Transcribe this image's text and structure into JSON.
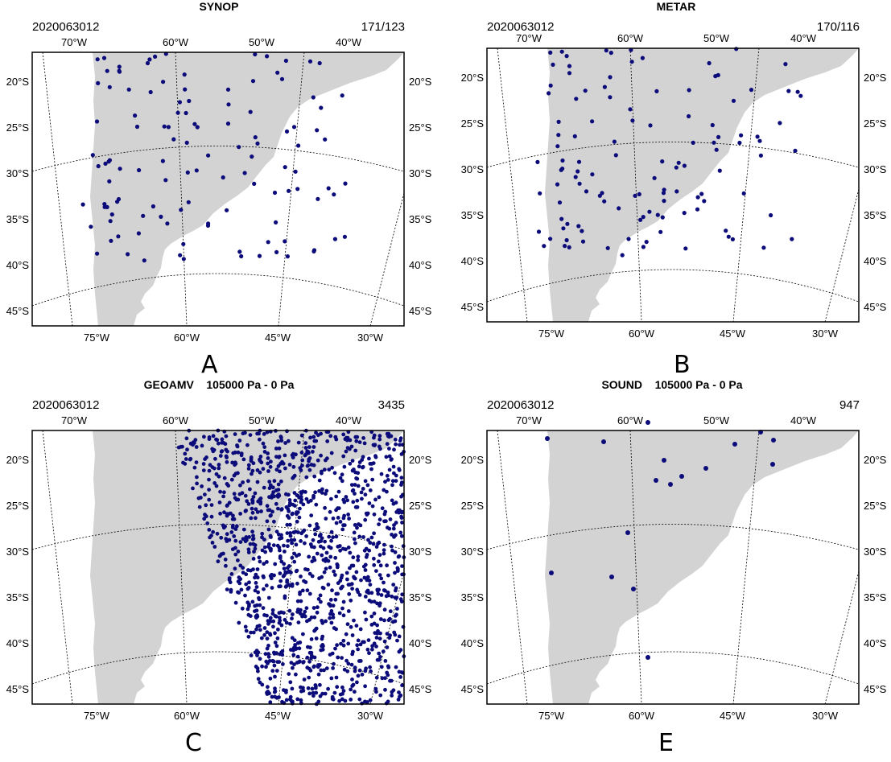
{
  "colors": {
    "land": "#d3d3d3",
    "obs": "#0b0b7a",
    "frame": "#000000"
  },
  "panels": [
    {
      "id": "A",
      "title": "SYNOP",
      "date": "2020063012",
      "count": "171/123",
      "letter": "A"
    },
    {
      "id": "B",
      "title": "METAR",
      "date": "2020063012",
      "count": "170/116",
      "letter": "B"
    },
    {
      "id": "C",
      "title": "GEOAMV    105000 Pa - 0 Pa",
      "date": "2020063012",
      "count": "3435",
      "letter": "C"
    },
    {
      "id": "E",
      "title": "SOUND    105000 Pa - 0 Pa",
      "date": "2020063012",
      "count": "947",
      "letter": "E"
    }
  ],
  "axes": {
    "top_lon_labels": [
      "70°W",
      "60°W",
      "50°W",
      "40°W"
    ],
    "bottom_lon_labels": [
      "75°W",
      "60°W",
      "45°W",
      "30°W"
    ],
    "lat_labels": [
      "20°S",
      "25°S",
      "30°S",
      "35°S",
      "40°S",
      "45°S"
    ]
  }
}
